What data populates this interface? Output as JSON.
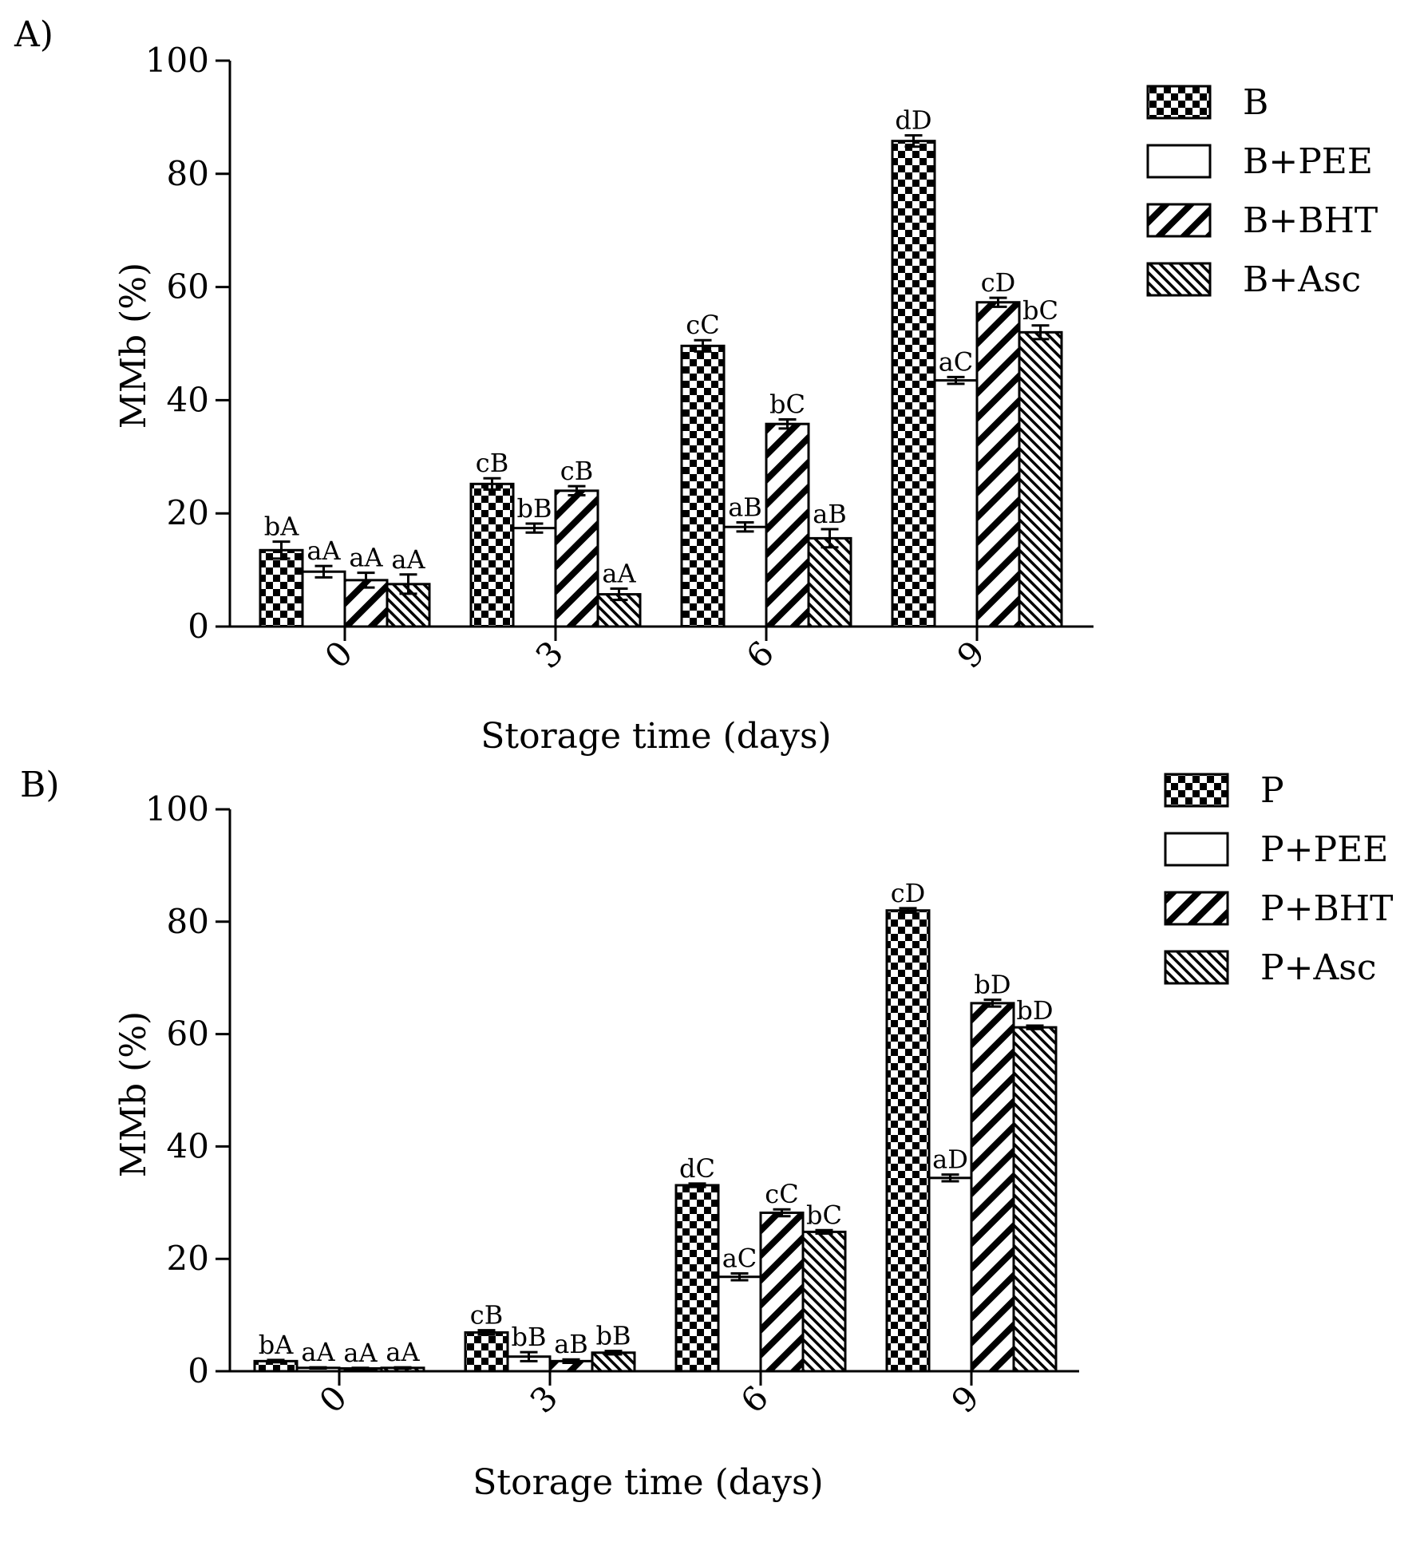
{
  "colors": {
    "ink": "#000000",
    "paper": "#ffffff"
  },
  "chart_data": [
    {
      "panel_label": "A)",
      "type": "bar",
      "xlabel": "Storage time (days)",
      "ylabel": "MMb (%)",
      "ylim": [
        0,
        100
      ],
      "yticks": [
        0,
        20,
        40,
        60,
        80,
        100
      ],
      "categories": [
        "0",
        "3",
        "6",
        "9"
      ],
      "legend_position": "right",
      "series": [
        {
          "name": "B",
          "pattern": "checker",
          "values": [
            13.5,
            25.2,
            49.6,
            85.8
          ],
          "errors": [
            1.5,
            1.0,
            1.0,
            1.0
          ],
          "labels": [
            "bA",
            "cB",
            "cC",
            "dD"
          ]
        },
        {
          "name": "B+PEE",
          "pattern": "blank",
          "values": [
            9.7,
            17.4,
            17.6,
            43.5
          ],
          "errors": [
            1.0,
            0.8,
            0.8,
            0.6
          ],
          "labels": [
            "aA",
            "bB",
            "aB",
            "aC"
          ]
        },
        {
          "name": "B+BHT",
          "pattern": "hatch",
          "values": [
            8.2,
            24.0,
            35.8,
            57.3
          ],
          "errors": [
            1.3,
            0.8,
            0.8,
            0.8
          ],
          "labels": [
            "aA",
            "cB",
            "bC",
            "cD"
          ]
        },
        {
          "name": "B+Asc",
          "pattern": "fine-hatch",
          "values": [
            7.5,
            5.7,
            15.6,
            52.0
          ],
          "errors": [
            1.7,
            1.0,
            1.6,
            1.2
          ],
          "labels": [
            "aA",
            "aA",
            "aB",
            "bC"
          ]
        }
      ]
    },
    {
      "panel_label": "B)",
      "type": "bar",
      "xlabel": "Storage time (days)",
      "ylabel": "MMb (%)",
      "ylim": [
        0,
        100
      ],
      "yticks": [
        0,
        20,
        40,
        60,
        80,
        100
      ],
      "categories": [
        "0",
        "3",
        "6",
        "9"
      ],
      "legend_position": "right",
      "series": [
        {
          "name": "P",
          "pattern": "checker",
          "values": [
            1.8,
            6.9,
            33.1,
            82.0
          ],
          "errors": [
            0.2,
            0.4,
            0.3,
            0.4
          ],
          "labels": [
            "bA",
            "cB",
            "dC",
            "cD"
          ]
        },
        {
          "name": "P+PEE",
          "pattern": "blank",
          "values": [
            0.6,
            2.6,
            16.8,
            34.4
          ],
          "errors": [
            0.1,
            0.8,
            0.6,
            0.6
          ],
          "labels": [
            "aA",
            "bB",
            "aC",
            "aD"
          ]
        },
        {
          "name": "P+BHT",
          "pattern": "hatch",
          "values": [
            0.5,
            1.8,
            28.2,
            65.5
          ],
          "errors": [
            0.1,
            0.3,
            0.6,
            0.6
          ],
          "labels": [
            "aA",
            "aB",
            "cC",
            "bD"
          ]
        },
        {
          "name": "P+Asc",
          "pattern": "fine-hatch",
          "values": [
            0.6,
            3.3,
            24.8,
            61.2
          ],
          "errors": [
            0.1,
            0.3,
            0.3,
            0.3
          ],
          "labels": [
            "aA",
            "bB",
            "bC",
            "bD"
          ]
        }
      ]
    }
  ]
}
